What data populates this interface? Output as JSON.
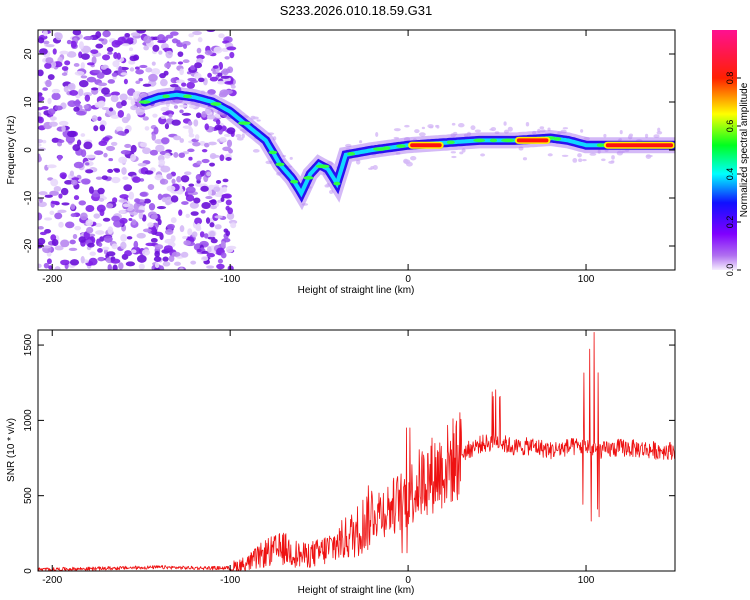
{
  "title": "S233.2026.010.18.59.G31",
  "chart_data": [
    {
      "type": "heatmap",
      "title": "S233.2026.010.18.59.G31",
      "xlabel": "Height of straight line (km)",
      "ylabel": "Frequency (Hz)",
      "xlim": [
        -208,
        150
      ],
      "ylim": [
        -25,
        25
      ],
      "xticks": [
        -200,
        -100,
        0,
        100
      ],
      "yticks": [
        -20,
        -10,
        0,
        10,
        20
      ],
      "colorbar": {
        "label": "Normalized spectral amplitude",
        "range": [
          0,
          1
        ],
        "ticks": [
          "0.0",
          "0.2",
          "0.4",
          "0.6",
          "0.8"
        ],
        "colormap": [
          "#f8f0ff",
          "#a020f0",
          "#1010ff",
          "#00ffff",
          "#00ff00",
          "#ffff00",
          "#ff0000",
          "#ff1090"
        ]
      },
      "ridge": {
        "x": [
          -148,
          -140,
          -130,
          -120,
          -110,
          -100,
          -90,
          -80,
          -72,
          -65,
          -60,
          -55,
          -50,
          -45,
          -40,
          -35,
          -20,
          0,
          20,
          40,
          60,
          80,
          90,
          100,
          110,
          120,
          150
        ],
        "y": [
          10,
          11,
          11.5,
          11,
          10,
          8,
          5,
          2,
          -3,
          -6,
          -9,
          -5,
          -3,
          -4,
          -7,
          -1,
          0,
          1,
          1.5,
          2,
          2,
          2.5,
          2,
          1,
          1,
          1,
          1
        ]
      },
      "strong_segments": [
        {
          "x": [
            0,
            20
          ],
          "y": 1
        },
        {
          "x": [
            60,
            80
          ],
          "y": 2
        },
        {
          "x": [
            110,
            150
          ],
          "y": 1
        }
      ]
    },
    {
      "type": "line",
      "xlabel": "Height of straight line (km)",
      "ylabel": "SNR (10 * v/v)",
      "xlim": [
        -208,
        150
      ],
      "ylim": [
        0,
        1600
      ],
      "xticks": [
        -200,
        -100,
        0,
        100
      ],
      "yticks": [
        0,
        500,
        1000,
        1500
      ],
      "color": "#ee1111",
      "series": [
        {
          "name": "SNR",
          "x": [
            -208,
            -180,
            -160,
            -140,
            -120,
            -100,
            -90,
            -80,
            -70,
            -60,
            -50,
            -40,
            -30,
            -20,
            -10,
            0,
            10,
            20,
            30,
            40,
            50,
            60,
            70,
            80,
            90,
            100,
            110,
            120,
            130,
            140,
            150
          ],
          "y": [
            10,
            15,
            20,
            25,
            20,
            20,
            50,
            120,
            150,
            100,
            120,
            180,
            250,
            380,
            420,
            500,
            620,
            680,
            780,
            840,
            860,
            820,
            830,
            800,
            820,
            830,
            800,
            820,
            810,
            800,
            800
          ]
        }
      ]
    }
  ]
}
